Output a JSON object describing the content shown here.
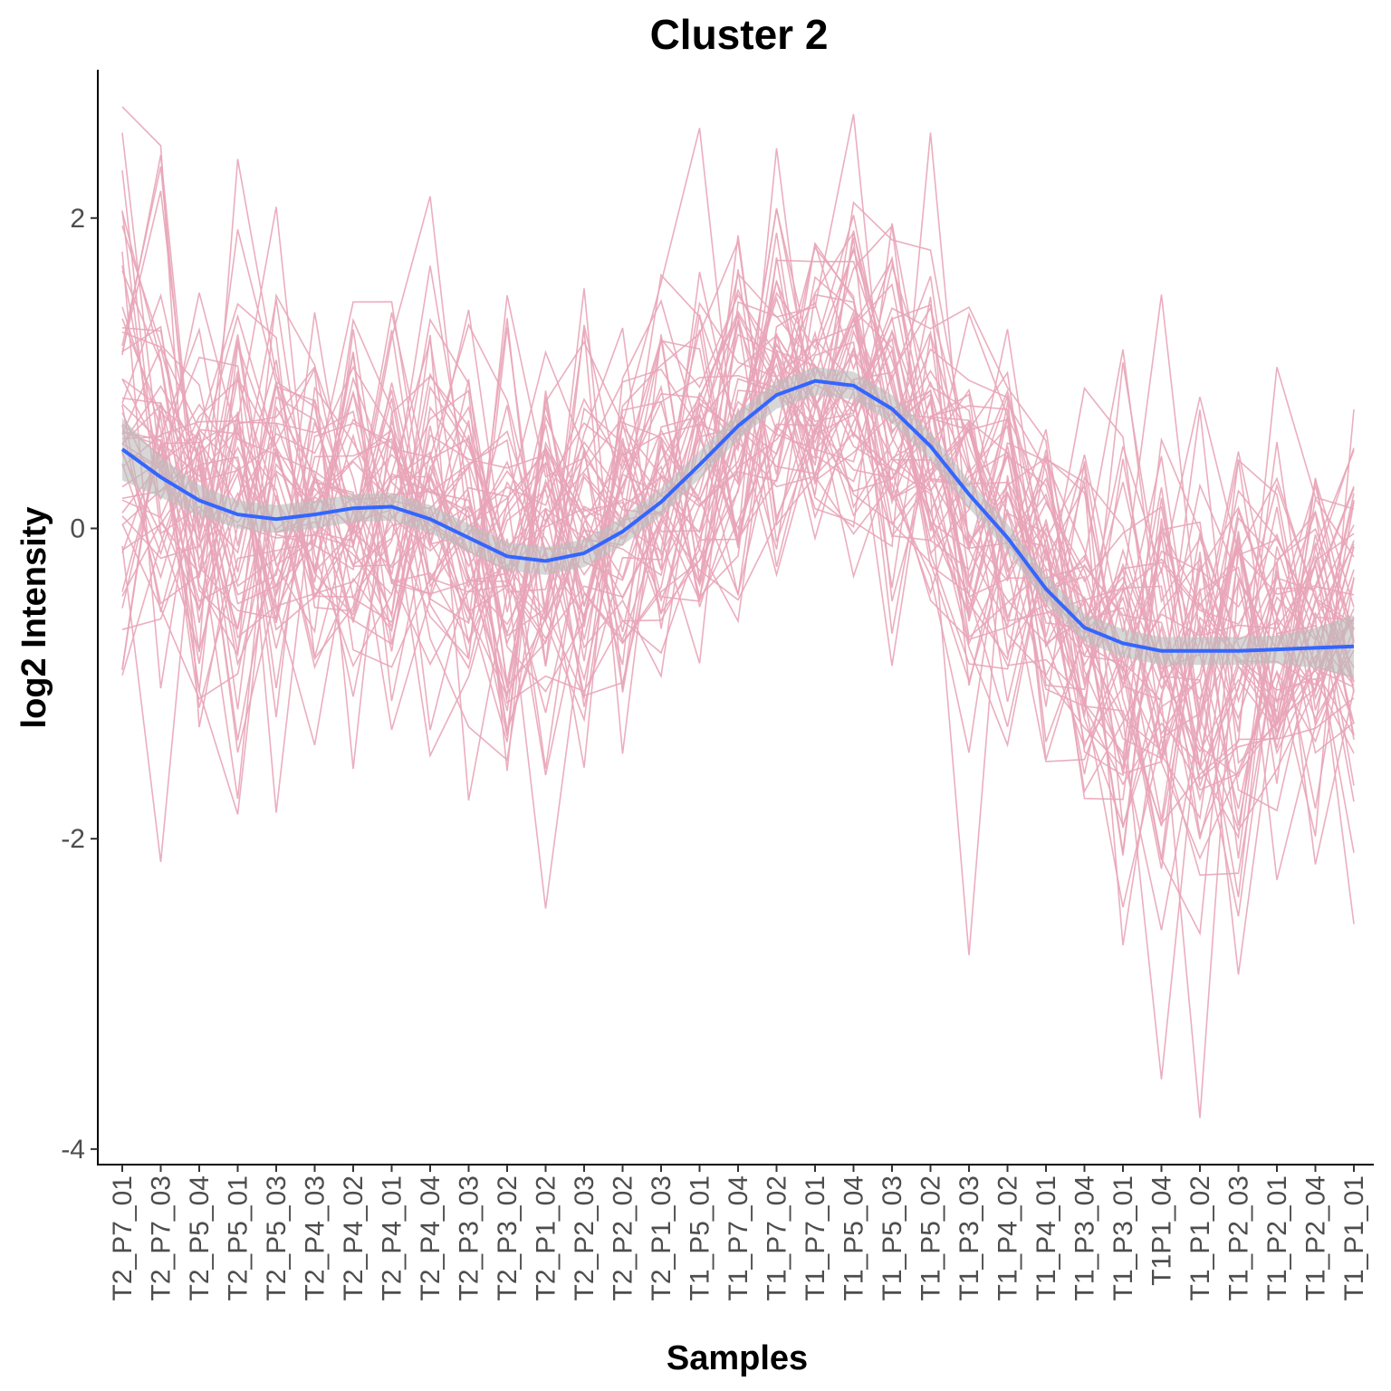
{
  "chart_data": {
    "type": "line",
    "title": "Cluster 2",
    "xlabel": "Samples",
    "ylabel": "log2 Intensity",
    "ylim": [
      -4.1,
      2.95
    ],
    "yticks": [
      2,
      0,
      -2,
      -4
    ],
    "ytick_labels": [
      "2",
      "0",
      "-2",
      "-4"
    ],
    "categories": [
      "T2_P7_01",
      "T2_P7_03",
      "T2_P5_04",
      "T2_P5_01",
      "T2_P5_03",
      "T2_P4_03",
      "T2_P4_02",
      "T2_P4_01",
      "T2_P4_04",
      "T2_P3_03",
      "T2_P3_02",
      "T2_P1_02",
      "T2_P2_03",
      "T2_P2_02",
      "T2_P1_03",
      "T1_P5_01",
      "T1_P7_04",
      "T1_P7_02",
      "T1_P7_01",
      "T1_P5_04",
      "T1_P5_03",
      "T1_P5_02",
      "T1_P3_03",
      "T1_P4_02",
      "T1_P4_01",
      "T1_P3_04",
      "T1_P3_01",
      "T1P1_04",
      "T1_P1_02",
      "T1_P2_03",
      "T1_P2_01",
      "T1_P2_04",
      "T1_P1_01"
    ],
    "profile_line_color": "#e8a5b8",
    "trend_line_color": "#3366ff",
    "ribbon_color": "#bdbdbd",
    "grid": false,
    "legend": "none",
    "trend": [
      0.51,
      0.33,
      0.18,
      0.09,
      0.06,
      0.09,
      0.13,
      0.14,
      0.06,
      -0.06,
      -0.18,
      -0.21,
      -0.16,
      -0.02,
      0.17,
      0.41,
      0.66,
      0.86,
      0.95,
      0.92,
      0.77,
      0.53,
      0.22,
      -0.06,
      -0.39,
      -0.64,
      -0.74,
      -0.79,
      -0.79,
      -0.79,
      -0.78,
      -0.77,
      -0.76
    ],
    "trend_se": [
      0.2,
      0.13,
      0.1,
      0.09,
      0.09,
      0.09,
      0.09,
      0.09,
      0.09,
      0.09,
      0.09,
      0.09,
      0.09,
      0.09,
      0.09,
      0.09,
      0.09,
      0.09,
      0.09,
      0.09,
      0.09,
      0.09,
      0.09,
      0.09,
      0.09,
      0.09,
      0.09,
      0.09,
      0.09,
      0.09,
      0.09,
      0.13,
      0.2
    ],
    "profile_count": 55,
    "profile_spread": [
      0.8,
      0.8,
      0.7,
      0.75,
      0.7,
      0.6,
      0.6,
      0.6,
      0.65,
      0.65,
      0.65,
      0.7,
      0.7,
      0.65,
      0.65,
      0.6,
      0.6,
      0.55,
      0.5,
      0.55,
      0.55,
      0.55,
      0.75,
      0.6,
      0.6,
      0.65,
      0.7,
      0.8,
      0.8,
      0.7,
      0.65,
      0.65,
      0.75
    ],
    "profile_extremes": [
      [
        [
          0,
          1.95
        ],
        [
          3,
          2.38
        ],
        [
          8,
          2.14
        ],
        [
          15,
          2.58
        ],
        [
          17,
          2.45
        ],
        [
          19,
          2.67
        ],
        [
          21,
          2.55
        ]
      ],
      [
        [
          1,
          -2.15
        ],
        [
          11,
          -2.45
        ],
        [
          22,
          -2.75
        ],
        [
          27,
          -3.55
        ],
        [
          28,
          -3.8
        ],
        [
          32,
          -2.55
        ],
        [
          29,
          -2.5
        ]
      ]
    ]
  }
}
